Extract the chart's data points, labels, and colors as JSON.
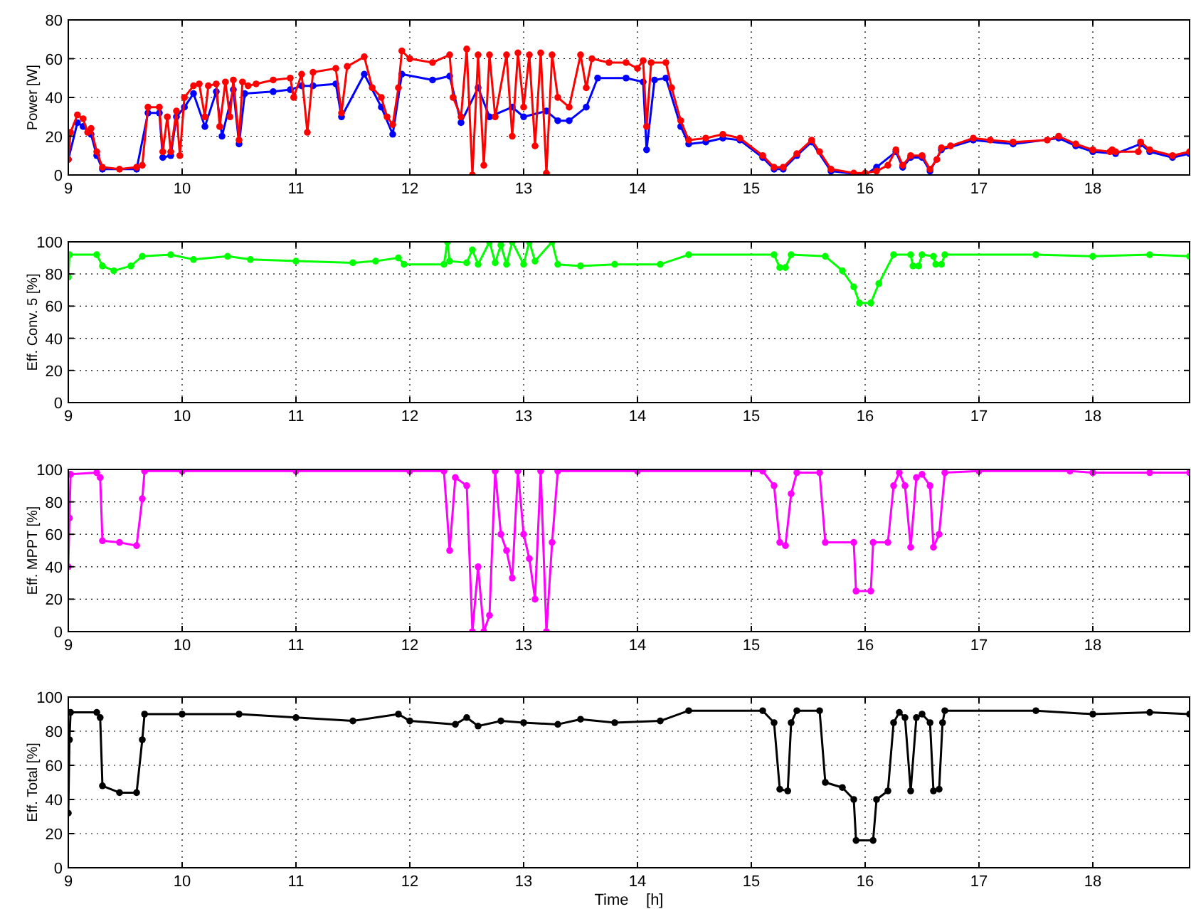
{
  "chart_data": [
    {
      "type": "line",
      "ylabel": "Power [W]",
      "xlim": [
        9,
        18.85
      ],
      "xticks": [
        9,
        10,
        11,
        12,
        13,
        14,
        15,
        16,
        17,
        18
      ],
      "ylim": [
        0,
        80
      ],
      "yticks": [
        0,
        20,
        40,
        60,
        80
      ],
      "grid": true,
      "marker": "circle",
      "series": [
        {
          "color": "#0000ff",
          "x": [
            9.0,
            9.08,
            9.13,
            9.2,
            9.25,
            9.3,
            9.6,
            9.7,
            9.8,
            9.83,
            9.9,
            9.95,
            10.02,
            10.1,
            10.2,
            10.3,
            10.35,
            10.45,
            10.5,
            10.55,
            10.8,
            10.95,
            11.05,
            11.15,
            11.35,
            11.4,
            11.6,
            11.75,
            11.85,
            11.93,
            12.2,
            12.35,
            12.45,
            12.6,
            12.7,
            12.9,
            13.0,
            13.2,
            13.3,
            13.4,
            13.55,
            13.65,
            13.9,
            14.05,
            14.08,
            14.15,
            14.25,
            14.38,
            14.45,
            14.6,
            14.75,
            14.9,
            15.1,
            15.2,
            15.28,
            15.4,
            15.53,
            15.7,
            16.0,
            16.1,
            16.27,
            16.33,
            16.4,
            16.5,
            16.57,
            16.67,
            16.95,
            17.3,
            17.7,
            17.85,
            18.0,
            18.2,
            18.42,
            18.5,
            18.7,
            18.85
          ],
          "values": [
            8,
            27,
            25,
            21,
            10,
            3,
            3,
            32,
            32,
            9,
            10,
            30,
            35,
            42,
            25,
            43,
            20,
            44,
            16,
            42,
            43,
            44,
            46,
            46,
            47,
            30,
            52,
            35,
            21,
            52,
            49,
            51,
            27,
            45,
            30,
            35,
            30,
            33,
            28,
            28,
            35,
            50,
            50,
            48,
            13,
            49,
            50,
            25,
            16,
            17,
            19,
            18,
            9,
            3,
            3,
            10,
            17,
            2,
            0,
            4,
            12,
            4,
            9,
            9,
            2,
            13,
            18,
            16,
            19,
            15,
            12,
            11,
            16,
            12,
            9,
            11
          ]
        },
        {
          "color": "#ff0000",
          "x": [
            9.0,
            9.02,
            9.08,
            9.13,
            9.17,
            9.2,
            9.25,
            9.3,
            9.45,
            9.6,
            9.65,
            9.7,
            9.8,
            9.83,
            9.87,
            9.9,
            9.95,
            9.98,
            10.02,
            10.1,
            10.15,
            10.2,
            10.23,
            10.3,
            10.33,
            10.38,
            10.42,
            10.45,
            10.5,
            10.53,
            10.58,
            10.65,
            10.8,
            10.95,
            10.98,
            11.05,
            11.1,
            11.15,
            11.35,
            11.4,
            11.45,
            11.6,
            11.67,
            11.75,
            11.8,
            11.85,
            11.9,
            11.93,
            12.0,
            12.2,
            12.35,
            12.38,
            12.45,
            12.5,
            12.55,
            12.6,
            12.65,
            12.7,
            12.75,
            12.85,
            12.9,
            12.95,
            13.0,
            13.05,
            13.1,
            13.15,
            13.2,
            13.25,
            13.3,
            13.4,
            13.5,
            13.55,
            13.6,
            13.75,
            13.9,
            14.0,
            14.05,
            14.08,
            14.12,
            14.25,
            14.3,
            14.38,
            14.45,
            14.6,
            14.75,
            14.9,
            15.1,
            15.2,
            15.28,
            15.4,
            15.53,
            15.6,
            15.7,
            15.9,
            16.0,
            16.1,
            16.2,
            16.27,
            16.33,
            16.4,
            16.5,
            16.57,
            16.63,
            16.67,
            16.75,
            16.95,
            17.1,
            17.3,
            17.6,
            17.7,
            17.85,
            18.0,
            18.15,
            18.17,
            18.2,
            18.4,
            18.42,
            18.5,
            18.7,
            18.85
          ],
          "values": [
            8,
            22,
            31,
            29,
            22,
            24,
            12,
            4,
            3,
            4,
            5,
            35,
            35,
            12,
            30,
            12,
            33,
            10,
            40,
            46,
            47,
            30,
            46,
            47,
            25,
            48,
            30,
            49,
            18,
            48,
            46,
            47,
            49,
            50,
            40,
            52,
            22,
            53,
            55,
            32,
            56,
            61,
            45,
            40,
            30,
            26,
            45,
            64,
            60,
            58,
            62,
            40,
            30,
            65,
            0,
            62,
            5,
            62,
            30,
            62,
            20,
            63,
            35,
            62,
            15,
            63,
            1,
            62,
            40,
            35,
            62,
            45,
            60,
            58,
            58,
            55,
            59,
            25,
            58,
            58,
            45,
            28,
            18,
            19,
            21,
            19,
            10,
            4,
            4,
            11,
            18,
            12,
            3,
            1,
            1,
            2,
            5,
            13,
            5,
            10,
            10,
            3,
            8,
            14,
            15,
            19,
            18,
            17,
            18,
            20,
            16,
            13,
            12,
            13,
            12,
            12,
            17,
            13,
            10,
            12
          ]
        }
      ]
    },
    {
      "type": "line",
      "ylabel": "Eff. Conv. 5 [%]",
      "xlim": [
        9,
        18.85
      ],
      "xticks": [
        9,
        10,
        11,
        12,
        13,
        14,
        15,
        16,
        17,
        18
      ],
      "ylim": [
        0,
        100
      ],
      "yticks": [
        0,
        20,
        40,
        60,
        80,
        100
      ],
      "grid": true,
      "marker": "circle",
      "series": [
        {
          "color": "#00ff00",
          "x": [
            9.0,
            9.01,
            9.25,
            9.3,
            9.4,
            9.55,
            9.65,
            9.9,
            10.1,
            10.4,
            10.6,
            11.0,
            11.5,
            11.7,
            11.9,
            11.95,
            12.3,
            12.33,
            12.35,
            12.5,
            12.55,
            12.6,
            12.7,
            12.75,
            12.8,
            12.85,
            12.9,
            13.0,
            13.05,
            13.1,
            13.25,
            13.3,
            13.5,
            13.8,
            14.2,
            14.45,
            15.2,
            15.25,
            15.3,
            15.35,
            15.65,
            15.8,
            15.9,
            15.95,
            16.05,
            16.12,
            16.25,
            16.4,
            16.42,
            16.47,
            16.5,
            16.6,
            16.62,
            16.67,
            16.7,
            17.5,
            18.0,
            18.5,
            18.85
          ],
          "values": [
            78,
            92,
            92,
            85,
            82,
            85,
            91,
            92,
            89,
            91,
            89,
            88,
            87,
            88,
            90,
            86,
            86,
            100,
            88,
            87,
            95,
            86,
            100,
            87,
            98,
            86,
            100,
            86,
            100,
            88,
            100,
            86,
            85,
            86,
            86,
            92,
            92,
            84,
            84,
            92,
            91,
            82,
            72,
            62,
            62,
            74,
            92,
            92,
            85,
            85,
            92,
            91,
            86,
            86,
            92,
            92,
            91,
            92,
            91
          ]
        }
      ]
    },
    {
      "type": "line",
      "ylabel": "Eff. MPPT [%]",
      "xlim": [
        9,
        18.85
      ],
      "xticks": [
        9,
        10,
        11,
        12,
        13,
        14,
        15,
        16,
        17,
        18
      ],
      "ylim": [
        0,
        100
      ],
      "yticks": [
        0,
        20,
        40,
        60,
        80,
        100
      ],
      "grid": true,
      "marker": "circle",
      "series": [
        {
          "color": "#ff00ff",
          "x": [
            9.0,
            9.01,
            9.02,
            9.25,
            9.28,
            9.3,
            9.45,
            9.6,
            9.65,
            9.67,
            10.0,
            11.0,
            12.0,
            12.3,
            12.35,
            12.4,
            12.5,
            12.55,
            12.6,
            12.65,
            12.7,
            12.75,
            12.8,
            12.85,
            12.9,
            12.95,
            13.0,
            13.05,
            13.1,
            13.15,
            13.2,
            13.25,
            13.3,
            14.0,
            15.1,
            15.2,
            15.25,
            15.3,
            15.35,
            15.4,
            15.6,
            15.65,
            15.9,
            15.92,
            16.05,
            16.07,
            16.2,
            16.25,
            16.3,
            16.35,
            16.4,
            16.45,
            16.5,
            16.57,
            16.6,
            16.65,
            16.7,
            17.0,
            17.8,
            18.0,
            18.5,
            18.85
          ],
          "values": [
            40,
            70,
            97,
            98,
            95,
            56,
            55,
            53,
            82,
            99,
            99,
            99,
            99,
            99,
            50,
            95,
            90,
            0,
            40,
            0,
            10,
            99,
            60,
            50,
            33,
            99,
            60,
            45,
            20,
            99,
            0,
            55,
            99,
            99,
            99,
            90,
            55,
            53,
            85,
            98,
            98,
            55,
            55,
            25,
            25,
            55,
            55,
            90,
            98,
            90,
            52,
            95,
            97,
            90,
            52,
            60,
            98,
            99,
            99,
            98,
            98,
            98
          ]
        }
      ]
    },
    {
      "type": "line",
      "ylabel": "Eff. Total [%]",
      "xlabel": "Time    [h]",
      "xlim": [
        9,
        18.85
      ],
      "xticks": [
        9,
        10,
        11,
        12,
        13,
        14,
        15,
        16,
        17,
        18
      ],
      "ylim": [
        0,
        100
      ],
      "yticks": [
        0,
        20,
        40,
        60,
        80,
        100
      ],
      "grid": true,
      "marker": "circle",
      "series": [
        {
          "color": "#000000",
          "x": [
            9.0,
            9.01,
            9.02,
            9.25,
            9.28,
            9.3,
            9.45,
            9.6,
            9.65,
            9.67,
            10.0,
            10.5,
            11.0,
            11.5,
            11.9,
            12.0,
            12.4,
            12.5,
            12.6,
            12.8,
            13.0,
            13.3,
            13.5,
            13.8,
            14.2,
            14.45,
            15.1,
            15.2,
            15.25,
            15.32,
            15.35,
            15.4,
            15.6,
            15.65,
            15.8,
            15.9,
            15.92,
            16.07,
            16.1,
            16.2,
            16.25,
            16.3,
            16.35,
            16.4,
            16.45,
            16.5,
            16.57,
            16.6,
            16.65,
            16.68,
            16.7,
            17.5,
            18.0,
            18.5,
            18.85
          ],
          "values": [
            32,
            75,
            91,
            91,
            88,
            48,
            44,
            44,
            75,
            90,
            90,
            90,
            88,
            86,
            90,
            86,
            84,
            88,
            83,
            86,
            85,
            84,
            87,
            85,
            86,
            92,
            92,
            85,
            46,
            45,
            85,
            92,
            92,
            50,
            47,
            40,
            16,
            16,
            40,
            45,
            85,
            91,
            88,
            45,
            88,
            90,
            85,
            45,
            46,
            85,
            92,
            92,
            90,
            91,
            90
          ]
        }
      ]
    }
  ]
}
